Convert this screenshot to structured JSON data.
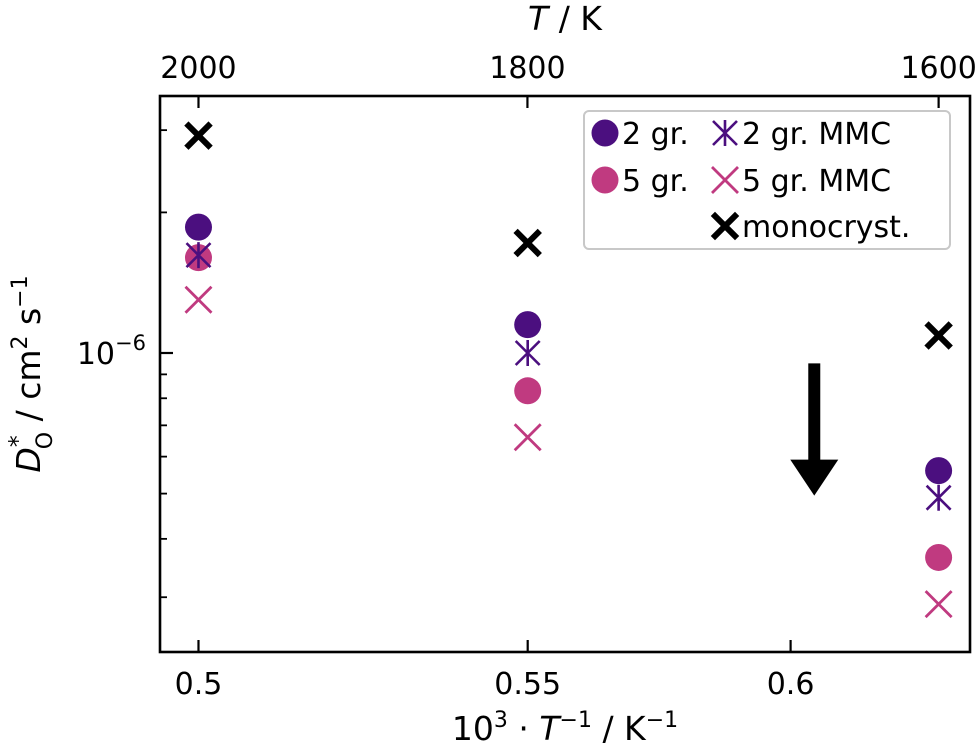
{
  "chart_data": {
    "type": "scatter",
    "xlabel_prefix": "10",
    "xlabel_sup": "3",
    "xlabel_dot": " · ",
    "xlabel_T": "T",
    "xlabel_T_sup": "−1",
    "xlabel_unit": " / K",
    "xlabel_unit_sup": "−1",
    "top_label_T": "T",
    "top_label_unit": " / K",
    "ylabel_D": "D",
    "ylabel_sub": "O",
    "ylabel_star": "*",
    "ylabel_unit": "  / cm",
    "ylabel_unit_sup": "2",
    "ylabel_s": " s",
    "ylabel_s_sup": "−1",
    "xlim": [
      0.4935,
      0.6303
    ],
    "ylim": [
      2.29e-07,
      3.55e-06
    ],
    "yscale": "log",
    "x_ticks": [
      {
        "value": 0.5,
        "label": "0.5"
      },
      {
        "value": 0.5556,
        "label": "0.55"
      },
      {
        "value": 0.6,
        "label": "0.6"
      }
    ],
    "top_ticks": [
      {
        "temperature": 2000,
        "label": "2000"
      },
      {
        "temperature": 1800,
        "label": "1800"
      },
      {
        "temperature": 1600,
        "label": "1600"
      }
    ],
    "y_major_tick": {
      "value": 1e-06,
      "base": "10",
      "exp": "−6"
    },
    "legend_position": "upper right",
    "series": [
      {
        "name": "2 gr.",
        "marker": "circle",
        "color": "#4b0f7f",
        "x": [
          0.5,
          0.5556,
          0.625
        ],
        "y": [
          1.86e-06,
          1.15e-06,
          5.6e-07
        ]
      },
      {
        "name": "5 gr.",
        "marker": "circle",
        "color": "#c03a80",
        "x": [
          0.5,
          0.5556,
          0.625
        ],
        "y": [
          1.6e-06,
          8.3e-07,
          3.65e-07
        ]
      },
      {
        "name": "2 gr. MMC",
        "marker": "star",
        "color": "#4b0f7f",
        "x": [
          0.5,
          0.5556,
          0.625
        ],
        "y": [
          1.62e-06,
          1e-06,
          4.9e-07
        ]
      },
      {
        "name": "5 gr. MMC",
        "marker": "x",
        "color": "#c03a80",
        "x": [
          0.5,
          0.5556,
          0.625
        ],
        "y": [
          1.3e-06,
          6.6e-07,
          2.9e-07
        ]
      },
      {
        "name": "monocryst.",
        "marker": "bold-x",
        "color": "#000000",
        "x": [
          0.5,
          0.5556,
          0.625
        ],
        "y": [
          2.92e-06,
          1.72e-06,
          1.09e-06
        ]
      }
    ],
    "annotation": {
      "type": "arrow",
      "direction": "down",
      "x": 0.604,
      "y_start": 9.5e-07,
      "y_end": 5e-07
    }
  }
}
